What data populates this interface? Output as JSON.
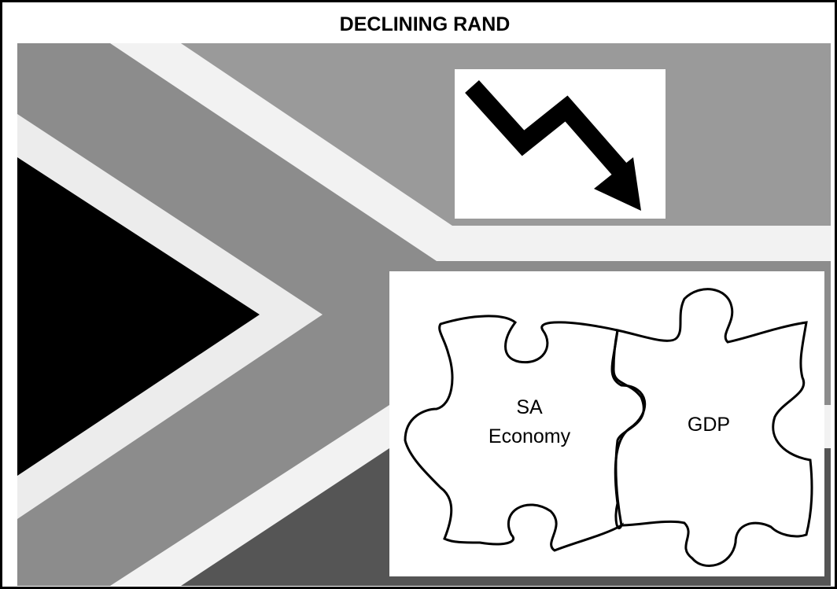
{
  "title": "DECLINING RAND",
  "puzzle": {
    "left_piece": [
      "SA",
      "Economy"
    ],
    "right_piece": "GDP"
  }
}
